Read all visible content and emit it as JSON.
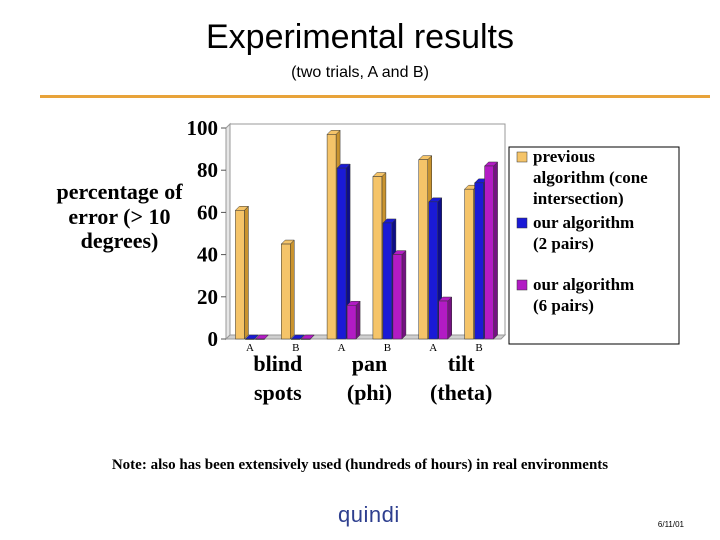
{
  "title": "Experimental results",
  "subtitle": "(two trials, A and B)",
  "note": "Note:  also has been extensively used (hundreds of hours) in real environments",
  "logo": "quindi",
  "date": "6/11/01",
  "colors": {
    "rule": "#e8a33a",
    "previous": "#f5c469",
    "two_pairs": "#1a1ad6",
    "six_pairs": "#b21bc4"
  },
  "chart_data": {
    "type": "bar",
    "ylabel": "percentage of error (> 10 degrees)",
    "ylim": [
      0,
      100
    ],
    "yticks": [
      0,
      20,
      40,
      60,
      80,
      100
    ],
    "categories": [
      {
        "label": "blind spots",
        "trial": "A"
      },
      {
        "label": "blind spots",
        "trial": "B"
      },
      {
        "label": "pan (phi)",
        "trial": "A"
      },
      {
        "label": "pan (phi)",
        "trial": "B"
      },
      {
        "label": "tilt (theta)",
        "trial": "A"
      },
      {
        "label": "tilt (theta)",
        "trial": "B"
      }
    ],
    "group_labels": [
      {
        "lines": [
          "blind",
          "spots"
        ]
      },
      {
        "lines": [
          "pan",
          "(phi)"
        ]
      },
      {
        "lines": [
          "tilt",
          "(theta)"
        ]
      }
    ],
    "series": [
      {
        "name": "previous algorithm (cone intersection)",
        "values": [
          61,
          45,
          97,
          77,
          85,
          71
        ]
      },
      {
        "name": "our algorithm (2 pairs)",
        "values": [
          0,
          0,
          81,
          55,
          65,
          74
        ]
      },
      {
        "name": "our algorithm (6 pairs)",
        "values": [
          0,
          0,
          16,
          40,
          18,
          82
        ]
      }
    ],
    "legend": [
      {
        "lines": [
          "previous",
          "algorithm (cone",
          "intersection)"
        ]
      },
      {
        "lines": [
          "our algorithm",
          "(2 pairs)"
        ]
      },
      {
        "lines": [
          "our algorithm",
          "(6 pairs)"
        ]
      }
    ],
    "legend_position": "right",
    "grid": false
  }
}
